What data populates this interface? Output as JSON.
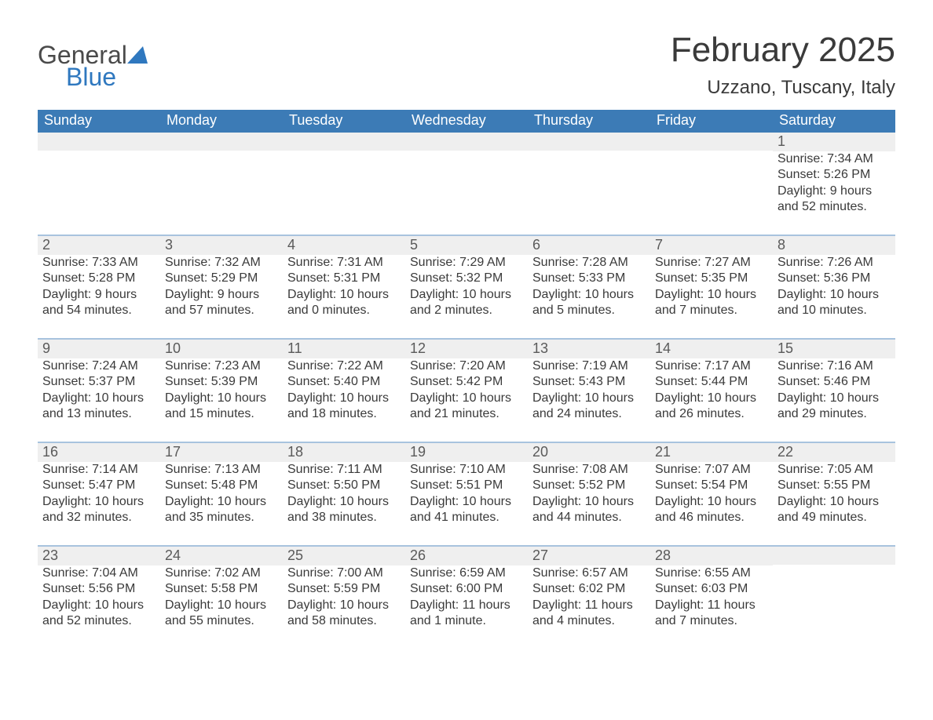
{
  "brand": {
    "word1": "General",
    "word2": "Blue"
  },
  "title": {
    "month": "February 2025",
    "location": "Uzzano, Tuscany, Italy"
  },
  "colors": {
    "header_bg": "#3c7bb6",
    "header_text": "#ffffff",
    "week_divider": "#a8c3de",
    "daynum_bg": "#efefef",
    "text": "#3a3a3a",
    "logo_gray": "#4a4a4a",
    "logo_blue": "#2f78bf",
    "sail_blue": "#2f78bf"
  },
  "dow": [
    "Sunday",
    "Monday",
    "Tuesday",
    "Wednesday",
    "Thursday",
    "Friday",
    "Saturday"
  ],
  "first_day_index": 6,
  "days": [
    {
      "n": 1,
      "sunrise": "7:34 AM",
      "sunset": "5:26 PM",
      "daylight": "9 hours and 52 minutes."
    },
    {
      "n": 2,
      "sunrise": "7:33 AM",
      "sunset": "5:28 PM",
      "daylight": "9 hours and 54 minutes."
    },
    {
      "n": 3,
      "sunrise": "7:32 AM",
      "sunset": "5:29 PM",
      "daylight": "9 hours and 57 minutes."
    },
    {
      "n": 4,
      "sunrise": "7:31 AM",
      "sunset": "5:31 PM",
      "daylight": "10 hours and 0 minutes."
    },
    {
      "n": 5,
      "sunrise": "7:29 AM",
      "sunset": "5:32 PM",
      "daylight": "10 hours and 2 minutes."
    },
    {
      "n": 6,
      "sunrise": "7:28 AM",
      "sunset": "5:33 PM",
      "daylight": "10 hours and 5 minutes."
    },
    {
      "n": 7,
      "sunrise": "7:27 AM",
      "sunset": "5:35 PM",
      "daylight": "10 hours and 7 minutes."
    },
    {
      "n": 8,
      "sunrise": "7:26 AM",
      "sunset": "5:36 PM",
      "daylight": "10 hours and 10 minutes."
    },
    {
      "n": 9,
      "sunrise": "7:24 AM",
      "sunset": "5:37 PM",
      "daylight": "10 hours and 13 minutes."
    },
    {
      "n": 10,
      "sunrise": "7:23 AM",
      "sunset": "5:39 PM",
      "daylight": "10 hours and 15 minutes."
    },
    {
      "n": 11,
      "sunrise": "7:22 AM",
      "sunset": "5:40 PM",
      "daylight": "10 hours and 18 minutes."
    },
    {
      "n": 12,
      "sunrise": "7:20 AM",
      "sunset": "5:42 PM",
      "daylight": "10 hours and 21 minutes."
    },
    {
      "n": 13,
      "sunrise": "7:19 AM",
      "sunset": "5:43 PM",
      "daylight": "10 hours and 24 minutes."
    },
    {
      "n": 14,
      "sunrise": "7:17 AM",
      "sunset": "5:44 PM",
      "daylight": "10 hours and 26 minutes."
    },
    {
      "n": 15,
      "sunrise": "7:16 AM",
      "sunset": "5:46 PM",
      "daylight": "10 hours and 29 minutes."
    },
    {
      "n": 16,
      "sunrise": "7:14 AM",
      "sunset": "5:47 PM",
      "daylight": "10 hours and 32 minutes."
    },
    {
      "n": 17,
      "sunrise": "7:13 AM",
      "sunset": "5:48 PM",
      "daylight": "10 hours and 35 minutes."
    },
    {
      "n": 18,
      "sunrise": "7:11 AM",
      "sunset": "5:50 PM",
      "daylight": "10 hours and 38 minutes."
    },
    {
      "n": 19,
      "sunrise": "7:10 AM",
      "sunset": "5:51 PM",
      "daylight": "10 hours and 41 minutes."
    },
    {
      "n": 20,
      "sunrise": "7:08 AM",
      "sunset": "5:52 PM",
      "daylight": "10 hours and 44 minutes."
    },
    {
      "n": 21,
      "sunrise": "7:07 AM",
      "sunset": "5:54 PM",
      "daylight": "10 hours and 46 minutes."
    },
    {
      "n": 22,
      "sunrise": "7:05 AM",
      "sunset": "5:55 PM",
      "daylight": "10 hours and 49 minutes."
    },
    {
      "n": 23,
      "sunrise": "7:04 AM",
      "sunset": "5:56 PM",
      "daylight": "10 hours and 52 minutes."
    },
    {
      "n": 24,
      "sunrise": "7:02 AM",
      "sunset": "5:58 PM",
      "daylight": "10 hours and 55 minutes."
    },
    {
      "n": 25,
      "sunrise": "7:00 AM",
      "sunset": "5:59 PM",
      "daylight": "10 hours and 58 minutes."
    },
    {
      "n": 26,
      "sunrise": "6:59 AM",
      "sunset": "6:00 PM",
      "daylight": "11 hours and 1 minute."
    },
    {
      "n": 27,
      "sunrise": "6:57 AM",
      "sunset": "6:02 PM",
      "daylight": "11 hours and 4 minutes."
    },
    {
      "n": 28,
      "sunrise": "6:55 AM",
      "sunset": "6:03 PM",
      "daylight": "11 hours and 7 minutes."
    }
  ],
  "labels": {
    "sunrise": "Sunrise:",
    "sunset": "Sunset:",
    "daylight": "Daylight:"
  }
}
